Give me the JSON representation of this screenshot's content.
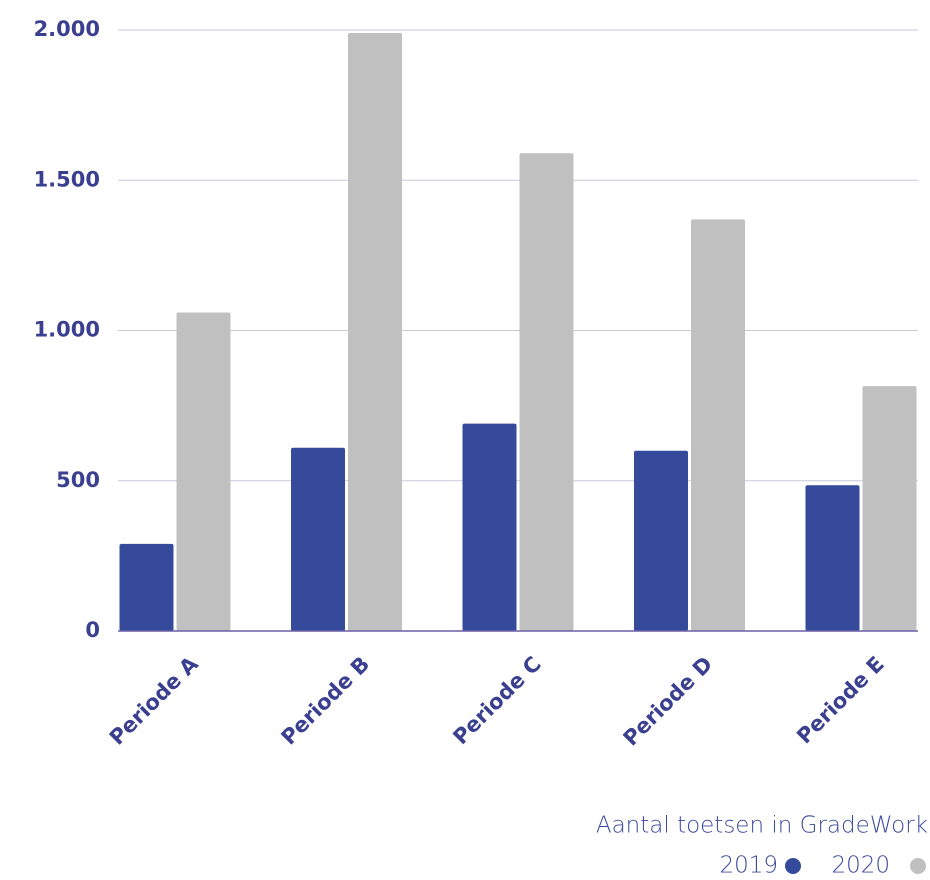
{
  "chart_data": {
    "type": "bar",
    "categories": [
      "Periode A",
      "Periode B",
      "Periode C",
      "Periode D",
      "Periode E"
    ],
    "series": [
      {
        "name": "2019",
        "color": "#364a9b",
        "values": [
          290,
          610,
          690,
          600,
          485
        ]
      },
      {
        "name": "2020",
        "color": "#c0c0c0",
        "values": [
          1060,
          1990,
          1590,
          1370,
          815
        ]
      }
    ],
    "ylim": [
      0,
      2000
    ],
    "yticks": [
      0,
      500,
      {
        "value": 1000,
        "label": "1.000"
      },
      {
        "value": 1500,
        "label": "1.500"
      },
      {
        "value": 2000,
        "label": "2.000"
      }
    ],
    "grid": true,
    "legend_title": "Aantal toetsen in GradeWork",
    "legend": "bottom-right"
  }
}
